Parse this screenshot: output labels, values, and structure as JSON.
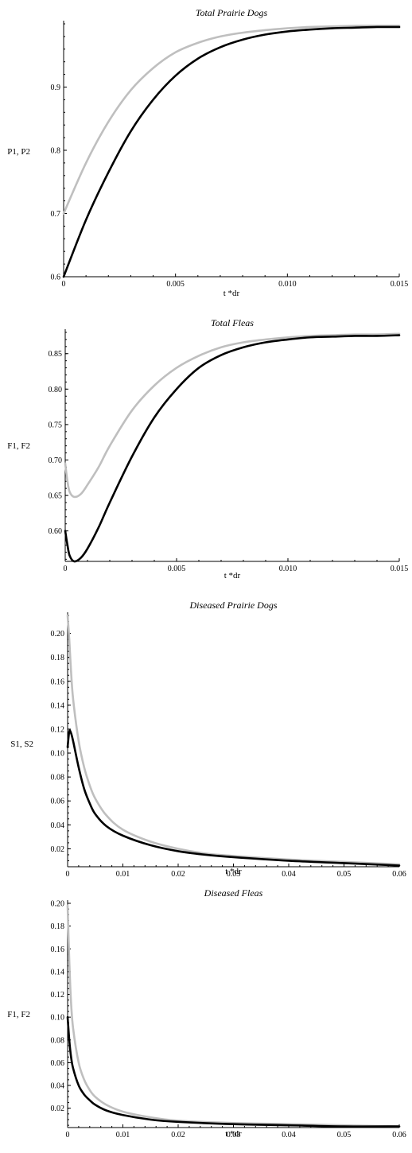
{
  "colors": {
    "series_1": "#000000",
    "series_2": "#bfbfbf"
  },
  "chart_data": [
    {
      "type": "line",
      "title": "Total Prairie Dogs",
      "xlabel": "t *dr",
      "ylabel": "P1, P2",
      "xlim": [
        0,
        0.015
      ],
      "ylim": [
        0.6,
        1.0
      ],
      "xticks": [
        0,
        0.005,
        0.01,
        0.015
      ],
      "xtick_labels": [
        "0",
        "0.005",
        "0.010",
        "0.015"
      ],
      "yticks": [
        0.6,
        0.7,
        0.8,
        0.9
      ],
      "ytick_labels": [
        "0.6",
        "0.7",
        "0.8",
        "0.9"
      ],
      "y_minor_step": 0.02,
      "series": [
        {
          "color": "#000000",
          "x": [
            0,
            0.001,
            0.002,
            0.003,
            0.004,
            0.005,
            0.006,
            0.007,
            0.008,
            0.009,
            0.01,
            0.011,
            0.012,
            0.013,
            0.014,
            0.015
          ],
          "values": [
            0.6,
            0.69,
            0.765,
            0.83,
            0.88,
            0.918,
            0.945,
            0.963,
            0.975,
            0.983,
            0.988,
            0.991,
            0.993,
            0.994,
            0.995,
            0.995
          ]
        },
        {
          "color": "#bfbfbf",
          "x": [
            0,
            0.001,
            0.002,
            0.003,
            0.004,
            0.005,
            0.006,
            0.007,
            0.008,
            0.009,
            0.01,
            0.011,
            0.012,
            0.013,
            0.014,
            0.015
          ],
          "values": [
            0.7,
            0.78,
            0.845,
            0.895,
            0.93,
            0.955,
            0.97,
            0.98,
            0.986,
            0.99,
            0.993,
            0.995,
            0.996,
            0.997,
            0.997,
            0.997
          ]
        }
      ]
    },
    {
      "type": "line",
      "title": "Total Fleas",
      "xlabel": "t *dr",
      "ylabel": "F1, F2",
      "xlim": [
        0,
        0.015
      ],
      "ylim": [
        0.557,
        0.88
      ],
      "xticks": [
        0,
        0.005,
        0.01,
        0.015
      ],
      "xtick_labels": [
        "0",
        "0.005",
        "0.010",
        "0.015"
      ],
      "yticks": [
        0.6,
        0.65,
        0.7,
        0.75,
        0.8,
        0.85
      ],
      "ytick_labels": [
        "0.60",
        "0.65",
        "0.70",
        "0.75",
        "0.80",
        "0.85"
      ],
      "y_minor_step": 0.01,
      "series": [
        {
          "color": "#000000",
          "x": [
            0,
            0.0001,
            0.0002,
            0.0004,
            0.0007,
            0.001,
            0.0015,
            0.002,
            0.003,
            0.004,
            0.005,
            0.006,
            0.007,
            0.008,
            0.009,
            0.01,
            0.011,
            0.012,
            0.013,
            0.014,
            0.015
          ],
          "values": [
            0.6,
            0.58,
            0.565,
            0.557,
            0.562,
            0.575,
            0.605,
            0.64,
            0.705,
            0.76,
            0.8,
            0.83,
            0.848,
            0.859,
            0.866,
            0.87,
            0.873,
            0.874,
            0.875,
            0.875,
            0.876
          ]
        },
        {
          "color": "#bfbfbf",
          "x": [
            0,
            0.0001,
            0.0002,
            0.0004,
            0.0007,
            0.001,
            0.0015,
            0.002,
            0.003,
            0.004,
            0.005,
            0.006,
            0.007,
            0.008,
            0.009,
            0.01,
            0.011,
            0.012,
            0.013,
            0.014,
            0.015
          ],
          "values": [
            0.695,
            0.67,
            0.655,
            0.648,
            0.652,
            0.665,
            0.69,
            0.72,
            0.77,
            0.805,
            0.83,
            0.847,
            0.859,
            0.866,
            0.87,
            0.873,
            0.875,
            0.876,
            0.877,
            0.877,
            0.878
          ]
        }
      ]
    },
    {
      "type": "line",
      "title": "Diseased Prairie Dogs",
      "xlabel": "t *dr",
      "ylabel": "S1, S2",
      "xlim": [
        0,
        0.06
      ],
      "ylim": [
        0.005,
        0.215
      ],
      "xticks": [
        0,
        0.01,
        0.02,
        0.03,
        0.04,
        0.05,
        0.06
      ],
      "xtick_labels": [
        "0",
        "0.01",
        "0.02",
        "0.03",
        "0.04",
        "0.05",
        "0.06"
      ],
      "yticks": [
        0.02,
        0.04,
        0.06,
        0.08,
        0.1,
        0.12,
        0.14,
        0.16,
        0.18,
        0.2
      ],
      "ytick_labels": [
        "0.02",
        "0.04",
        "0.06",
        "0.08",
        "0.10",
        "0.12",
        "0.14",
        "0.16",
        "0.18",
        "0.20"
      ],
      "y_minor_step": 0.005,
      "series": [
        {
          "color": "#000000",
          "x": [
            0,
            0.0003,
            0.0006,
            0.001,
            0.002,
            0.003,
            0.004,
            0.005,
            0.007,
            0.01,
            0.015,
            0.02,
            0.025,
            0.03,
            0.04,
            0.05,
            0.06
          ],
          "values": [
            0.105,
            0.118,
            0.117,
            0.11,
            0.088,
            0.07,
            0.058,
            0.049,
            0.039,
            0.031,
            0.023,
            0.018,
            0.015,
            0.013,
            0.01,
            0.008,
            0.006
          ]
        },
        {
          "color": "#bfbfbf",
          "x": [
            0,
            0.0003,
            0.0006,
            0.001,
            0.002,
            0.003,
            0.004,
            0.005,
            0.007,
            0.01,
            0.015,
            0.02,
            0.025,
            0.03,
            0.04,
            0.05,
            0.06
          ],
          "values": [
            0.215,
            0.195,
            0.17,
            0.145,
            0.11,
            0.088,
            0.073,
            0.062,
            0.048,
            0.036,
            0.026,
            0.02,
            0.016,
            0.014,
            0.011,
            0.009,
            0.007
          ]
        }
      ]
    },
    {
      "type": "line",
      "title": "Diseased Fleas",
      "xlabel": "t *dr",
      "ylabel": "F1, F2",
      "xlim": [
        0,
        0.06
      ],
      "ylim": [
        0.003,
        0.2
      ],
      "xticks": [
        0,
        0.01,
        0.02,
        0.03,
        0.04,
        0.05,
        0.06
      ],
      "xtick_labels": [
        "0",
        "0.01",
        "0.02",
        "0.03",
        "0.04",
        "0.05",
        "0.06"
      ],
      "yticks": [
        0.02,
        0.04,
        0.06,
        0.08,
        0.1,
        0.12,
        0.14,
        0.16,
        0.18,
        0.2
      ],
      "ytick_labels": [
        "0.02",
        "0.04",
        "0.06",
        "0.08",
        "0.10",
        "0.12",
        "0.14",
        "0.16",
        "0.18",
        "0.20"
      ],
      "y_minor_step": 0.005,
      "series": [
        {
          "color": "#000000",
          "x": [
            0,
            0.0003,
            0.0006,
            0.001,
            0.002,
            0.003,
            0.004,
            0.005,
            0.007,
            0.01,
            0.015,
            0.02,
            0.03,
            0.04,
            0.05,
            0.06
          ],
          "values": [
            0.1,
            0.08,
            0.066,
            0.055,
            0.04,
            0.032,
            0.027,
            0.023,
            0.018,
            0.014,
            0.01,
            0.008,
            0.006,
            0.005,
            0.004,
            0.004
          ]
        },
        {
          "color": "#bfbfbf",
          "x": [
            0,
            0.0003,
            0.0006,
            0.001,
            0.002,
            0.003,
            0.004,
            0.005,
            0.007,
            0.01,
            0.015,
            0.02,
            0.03,
            0.04,
            0.05,
            0.06
          ],
          "values": [
            0.198,
            0.15,
            0.115,
            0.09,
            0.06,
            0.045,
            0.036,
            0.03,
            0.023,
            0.017,
            0.012,
            0.009,
            0.007,
            0.006,
            0.005,
            0.004
          ]
        }
      ]
    }
  ]
}
